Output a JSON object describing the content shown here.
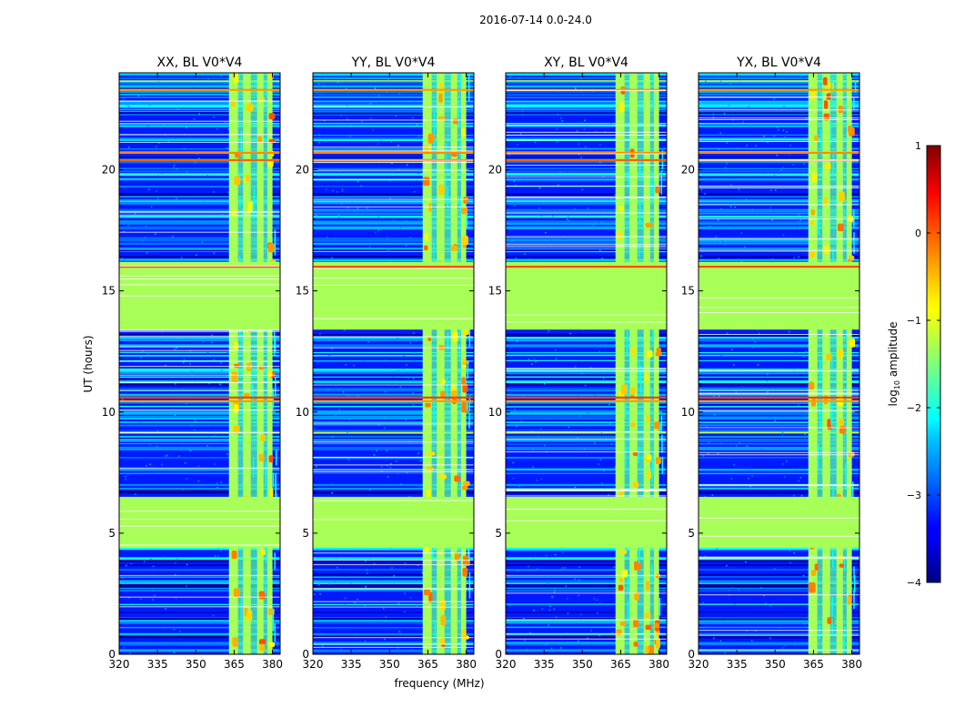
{
  "chart_data": {
    "type": "heatmap",
    "suptitle": "2016-07-14 0.0-24.0",
    "xlabel": "frequency (MHz)",
    "ylabel": "UT (hours)",
    "xlim": [
      320,
      383
    ],
    "ylim": [
      0,
      24
    ],
    "xticks": [
      "320",
      "335",
      "350",
      "365",
      "380"
    ],
    "yticks": [
      "0",
      "5",
      "10",
      "15",
      "20"
    ],
    "colorbar": {
      "label_prefix": "log",
      "label_sub": "10",
      "label_suffix": " amplitude",
      "range": [
        -4,
        1
      ],
      "ticks": [
        "1",
        "0",
        "−1",
        "−2",
        "−3",
        "−4"
      ]
    },
    "panels": [
      {
        "title": "XX, BL V0*V4",
        "seed": 11
      },
      {
        "title": "YY, BL V0*V4",
        "seed": 23
      },
      {
        "title": "XY, BL V0*V4",
        "seed": 37
      },
      {
        "title": "YX, BL V0*V4",
        "seed": 51
      }
    ],
    "flagged_level": -1.3,
    "flagged_time_ranges": [
      [
        4.4,
        6.5
      ],
      [
        13.4,
        16.2
      ]
    ],
    "rfi_band_mhz": [
      363,
      380
    ],
    "rfi_columns_mhz": [
      [
        363,
        366.5
      ],
      [
        368.5,
        371.5
      ],
      [
        374,
        376.5
      ],
      [
        378,
        380
      ]
    ],
    "colors": {
      "low": "#000080",
      "mid": "#00ffff",
      "flag": "#9cff5a",
      "high": "#800000"
    }
  }
}
